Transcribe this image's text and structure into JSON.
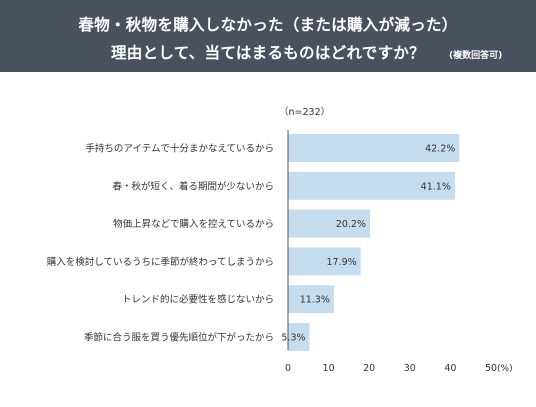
{
  "header": {
    "title_line1": "春物・秋物を購入しなかった（または購入が減った）",
    "title_line2": "理由として、当てはまるものはどれですか？",
    "note": "(複数回答可)"
  },
  "colors": {
    "header_bg": "#4a515e",
    "bar": "#c5ddef",
    "axis": "#555555",
    "text": "#333333"
  },
  "chart_data": {
    "type": "bar",
    "orientation": "horizontal",
    "sample_label": "（n=232）",
    "categories": [
      "手持ちのアイテムで十分まかなえているから",
      "春・秋が短く、着る期間が少ないから",
      "物価上昇などで購入を控えているから",
      "購入を検討しているうちに季節が終わってしまうから",
      "トレンド的に必要性を感じないから",
      "季節に合う服を買う優先順位が下がったから"
    ],
    "values": [
      42.2,
      41.1,
      20.2,
      17.9,
      11.3,
      5.3
    ],
    "value_labels": [
      "42.2%",
      "41.1%",
      "20.2%",
      "17.9%",
      "11.3%",
      "5.3%"
    ],
    "xlim": [
      0,
      50
    ],
    "xticks": [
      "0",
      "10",
      "20",
      "30",
      "40",
      "50"
    ],
    "x_unit": "(%)",
    "grid": false
  }
}
